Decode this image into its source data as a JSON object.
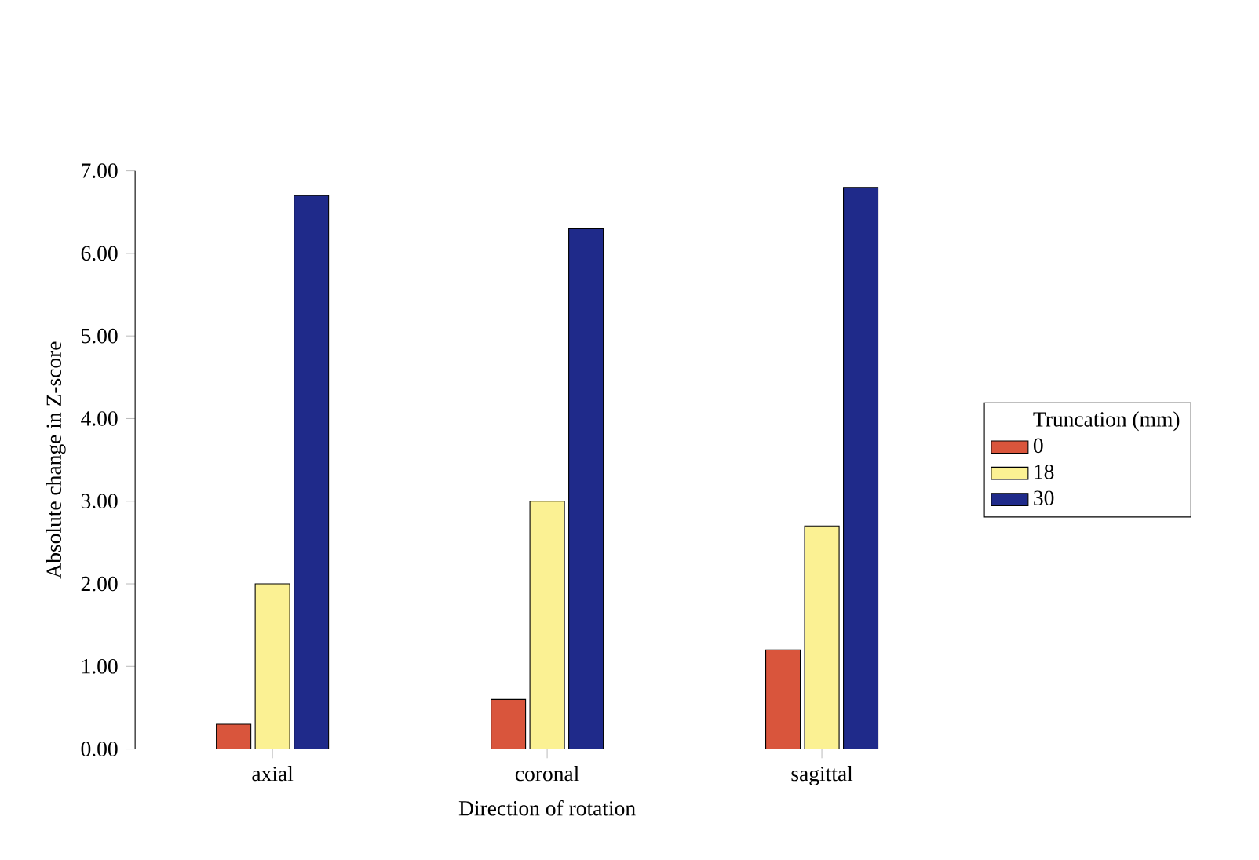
{
  "chart_data": {
    "type": "bar",
    "xlabel": "Direction of rotation",
    "ylabel": "Absolute change in Z-score",
    "legend_title": "Truncation (mm)",
    "categories": [
      "axial",
      "coronal",
      "sagittal"
    ],
    "series": [
      {
        "name": "0",
        "color": "#d9553c",
        "values": [
          0.3,
          0.6,
          1.2
        ]
      },
      {
        "name": "18",
        "color": "#fbf193",
        "values": [
          2.0,
          3.0,
          2.7
        ]
      },
      {
        "name": "30",
        "color": "#1f2a8a",
        "values": [
          6.7,
          6.3,
          6.8
        ]
      }
    ],
    "ylim": [
      0,
      7
    ],
    "yticks": [
      {
        "value": 0,
        "label": "0.00"
      },
      {
        "value": 1,
        "label": "1.00"
      },
      {
        "value": 2,
        "label": "2.00"
      },
      {
        "value": 3,
        "label": "3.00"
      },
      {
        "value": 4,
        "label": "4.00"
      },
      {
        "value": 5,
        "label": "5.00"
      },
      {
        "value": 6,
        "label": "6.00"
      },
      {
        "value": 7,
        "label": "7.00"
      }
    ],
    "legend": "right"
  }
}
